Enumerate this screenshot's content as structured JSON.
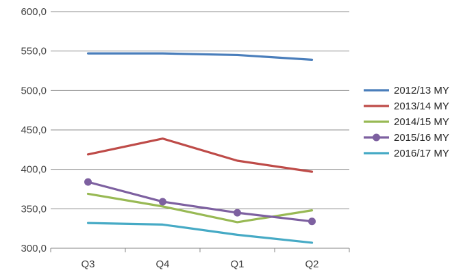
{
  "chart_data": {
    "type": "line",
    "title": "",
    "xlabel": "",
    "ylabel": "",
    "categories": [
      "Q3",
      "Q4",
      "Q1",
      "Q2"
    ],
    "ylim": [
      300,
      600
    ],
    "yticks": [
      300,
      350,
      400,
      450,
      500,
      550,
      600
    ],
    "ytick_labels": [
      "300,0",
      "350,0",
      "400,0",
      "450,0",
      "500,0",
      "550,0",
      "600,0"
    ],
    "grid": true,
    "legend_position": "right",
    "series": [
      {
        "name": "2012/13 MY",
        "color": "#4a7ebb",
        "marker": false,
        "values": [
          547,
          547,
          545,
          539
        ]
      },
      {
        "name": "2013/14 MY",
        "color": "#be4b48",
        "marker": false,
        "values": [
          419,
          439,
          411,
          397
        ]
      },
      {
        "name": "2014/15 MY",
        "color": "#98b954",
        "marker": false,
        "values": [
          369,
          353,
          333,
          348
        ]
      },
      {
        "name": "2015/16 MY",
        "color": "#7d60a0",
        "marker": true,
        "values": [
          384,
          359,
          345,
          334
        ]
      },
      {
        "name": "2016/17 MY",
        "color": "#46aac5",
        "marker": false,
        "values": [
          332,
          330,
          317,
          307
        ]
      }
    ]
  }
}
